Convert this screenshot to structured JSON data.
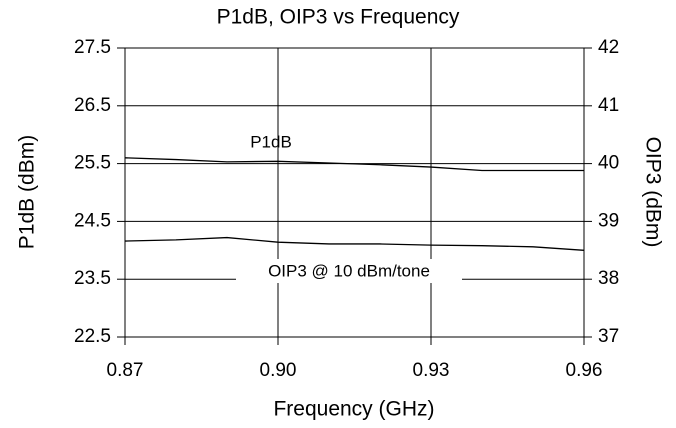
{
  "chart_data": {
    "type": "line",
    "title": "P1dB, OIP3 vs Frequency",
    "xlabel": "Frequency  (GHz)",
    "ylabel": "P1dB (dBm)",
    "y2label": "OIP3 (dBm)",
    "x": [
      0.87,
      0.88,
      0.89,
      0.9,
      0.91,
      0.92,
      0.93,
      0.94,
      0.95,
      0.96
    ],
    "series": [
      {
        "name": "P1dB",
        "color": "#000000",
        "values": [
          25.6,
          25.57,
          25.53,
          25.54,
          25.51,
          25.48,
          25.44,
          25.38,
          25.38,
          25.38
        ]
      },
      {
        "name": "OIP3 @ 10 dBm/tone",
        "color": "#000000",
        "axis": "y2",
        "values": [
          38.66,
          38.68,
          38.72,
          38.64,
          38.61,
          38.61,
          38.59,
          38.58,
          38.56,
          38.5
        ]
      }
    ],
    "xlim": [
      0.87,
      0.96
    ],
    "xticks": [
      0.87,
      {
        "value": 0.9,
        "label": "0.90"
      },
      0.93,
      0.96
    ],
    "ylim": [
      22.5,
      27.5
    ],
    "yticks": [
      22.5,
      23.5,
      24.5,
      25.5,
      26.5,
      27.5
    ],
    "y2lim": [
      37,
      42
    ],
    "y2ticks": [
      37,
      38,
      39,
      40,
      41,
      42
    ],
    "grid": true
  }
}
